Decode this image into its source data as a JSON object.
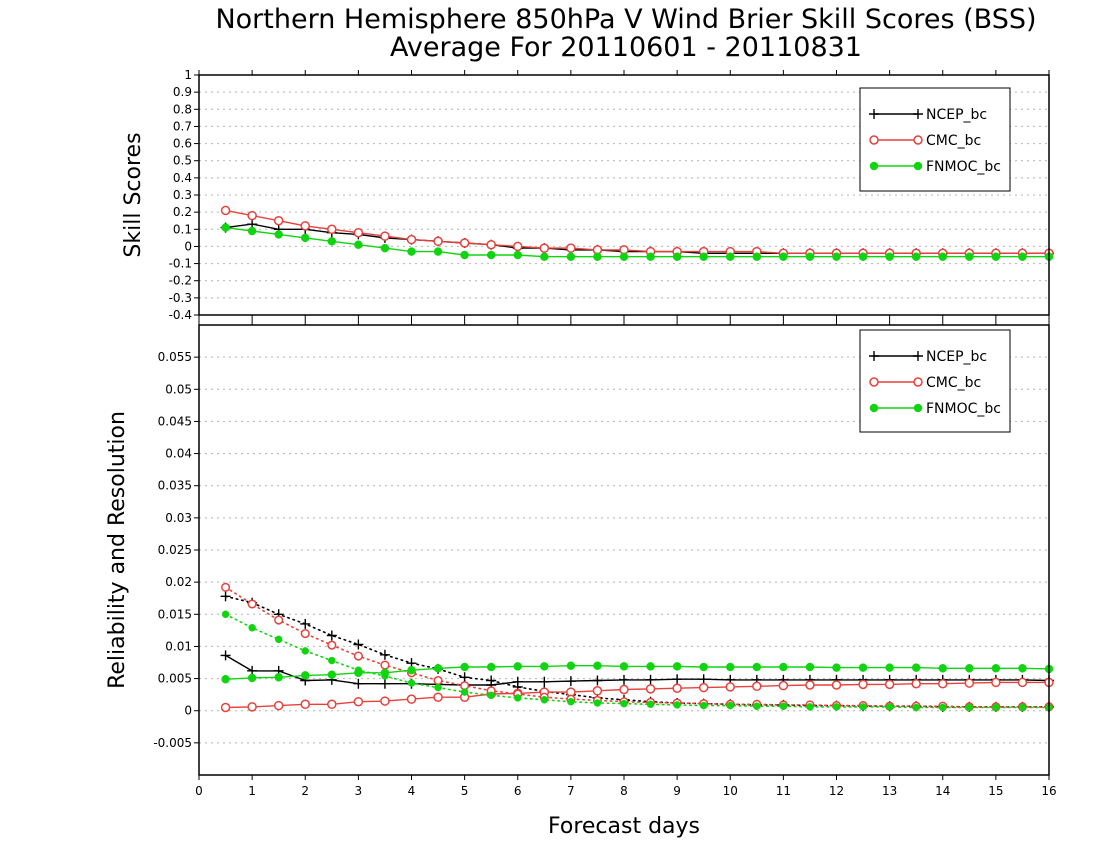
{
  "chart_data": {
    "title_line1": "Northern Hemisphere 850hPa V Wind Brier Skill Scores (BSS)",
    "title_line2": "Average For 20110601 - 20110831",
    "xlabel": "Forecast days",
    "x_ticks": [
      "0",
      "1",
      "2",
      "3",
      "4",
      "5",
      "6",
      "7",
      "8",
      "9",
      "10",
      "11",
      "12",
      "13",
      "14",
      "15",
      "16"
    ],
    "xlim": [
      0,
      16
    ],
    "x": [
      0.5,
      1,
      1.5,
      2,
      2.5,
      3,
      3.5,
      4,
      4.5,
      5,
      5.5,
      6,
      6.5,
      7,
      7.5,
      8,
      8.5,
      9,
      9.5,
      10,
      10.5,
      11,
      11.5,
      12,
      12.5,
      13,
      13.5,
      14,
      14.5,
      15,
      15.5,
      16
    ],
    "colors": {
      "NCEP_bc": "#000000",
      "CMC_bc": "#e8413c",
      "FNMOC_bc": "#11d411"
    },
    "charts": [
      {
        "type": "line",
        "ylabel": "Skill Scores",
        "ylim": [
          -0.4,
          1
        ],
        "y_ticks": [
          "1",
          "0.9",
          "0.8",
          "0.7",
          "0.6",
          "0.5",
          "0.4",
          "0.3",
          "0.2",
          "0.1",
          "0",
          "-0.1",
          "-0.2",
          "-0.3",
          "-0.4"
        ],
        "grid": true,
        "legend": "top-right",
        "series": [
          {
            "name": "NCEP_bc",
            "values": [
              0.11,
              0.13,
              0.1,
              0.1,
              0.08,
              0.07,
              0.05,
              0.04,
              0.03,
              0.02,
              0.01,
              -0.01,
              -0.01,
              -0.02,
              -0.02,
              -0.03,
              -0.03,
              -0.03,
              -0.04,
              -0.04,
              -0.04,
              -0.04,
              -0.04,
              -0.04,
              -0.04,
              -0.04,
              -0.04,
              -0.04,
              -0.04,
              -0.04,
              -0.04,
              -0.04
            ]
          },
          {
            "name": "CMC_bc",
            "values": [
              0.21,
              0.18,
              0.15,
              0.12,
              0.1,
              0.08,
              0.06,
              0.04,
              0.03,
              0.02,
              0.01,
              0.0,
              -0.01,
              -0.01,
              -0.02,
              -0.02,
              -0.03,
              -0.03,
              -0.03,
              -0.03,
              -0.03,
              -0.04,
              -0.04,
              -0.04,
              -0.04,
              -0.04,
              -0.04,
              -0.04,
              -0.04,
              -0.04,
              -0.04,
              -0.04
            ]
          },
          {
            "name": "FNMOC_bc",
            "values": [
              0.11,
              0.09,
              0.07,
              0.05,
              0.03,
              0.01,
              -0.01,
              -0.03,
              -0.03,
              -0.05,
              -0.05,
              -0.05,
              -0.06,
              -0.06,
              -0.06,
              -0.06,
              -0.06,
              -0.06,
              -0.06,
              -0.06,
              -0.06,
              -0.06,
              -0.06,
              -0.06,
              -0.06,
              -0.06,
              -0.06,
              -0.06,
              -0.06,
              -0.06,
              -0.06,
              -0.06
            ]
          }
        ]
      },
      {
        "type": "line",
        "ylabel": "Reliability and Resolution",
        "ylim": [
          -0.01,
          0.06
        ],
        "y_ticks": [
          "0.055",
          "0.05",
          "0.045",
          "0.04",
          "0.035",
          "0.03",
          "0.025",
          "0.02",
          "0.015",
          "0.01",
          "0.005",
          "0",
          "-0.005"
        ],
        "grid": true,
        "legend": "top-right",
        "series": [
          {
            "name": "NCEP_bc",
            "component": "solid",
            "values": [
              0.0086,
              0.0062,
              0.0062,
              0.0047,
              0.0048,
              0.0042,
              0.0042,
              0.0042,
              0.0041,
              0.004,
              0.004,
              0.0045,
              0.0045,
              0.0046,
              0.0047,
              0.0048,
              0.0048,
              0.0049,
              0.0049,
              0.0048,
              0.0048,
              0.0048,
              0.0048,
              0.0048,
              0.0048,
              0.0048,
              0.0048,
              0.0048,
              0.0048,
              0.0048,
              0.0048,
              0.0047
            ]
          },
          {
            "name": "NCEP_bc",
            "component": "dotted",
            "values": [
              0.0178,
              0.0168,
              0.015,
              0.0135,
              0.0117,
              0.0103,
              0.0087,
              0.0074,
              0.0065,
              0.0052,
              0.0047,
              0.0037,
              0.003,
              0.0025,
              0.002,
              0.0017,
              0.0014,
              0.0012,
              0.0011,
              0.001,
              0.0009,
              0.0009,
              0.0008,
              0.0008,
              0.0007,
              0.0007,
              0.0007,
              0.0006,
              0.0006,
              0.0006,
              0.0006,
              0.0006
            ]
          },
          {
            "name": "CMC_bc",
            "component": "solid",
            "values": [
              0.0005,
              0.0006,
              0.0008,
              0.001,
              0.001,
              0.0014,
              0.0015,
              0.0018,
              0.0021,
              0.0021,
              0.0026,
              0.0027,
              0.0029,
              0.0029,
              0.0031,
              0.0033,
              0.0034,
              0.0035,
              0.0036,
              0.0037,
              0.0038,
              0.0039,
              0.004,
              0.004,
              0.0041,
              0.0041,
              0.0042,
              0.0042,
              0.0043,
              0.0044,
              0.0044,
              0.0044
            ]
          },
          {
            "name": "CMC_bc",
            "component": "dotted",
            "values": [
              0.0192,
              0.0166,
              0.0141,
              0.012,
              0.0102,
              0.0085,
              0.0071,
              0.0059,
              0.0047,
              0.0039,
              0.0031,
              0.0026,
              0.0021,
              0.0018,
              0.0016,
              0.0014,
              0.0013,
              0.0012,
              0.0011,
              0.001,
              0.001,
              0.0009,
              0.0009,
              0.0008,
              0.0008,
              0.0007,
              0.0007,
              0.0007,
              0.0006,
              0.0006,
              0.0006,
              0.0006
            ]
          },
          {
            "name": "FNMOC_bc",
            "component": "solid",
            "values": [
              0.0049,
              0.0051,
              0.0052,
              0.0055,
              0.0056,
              0.0059,
              0.0059,
              0.0063,
              0.0066,
              0.0068,
              0.0068,
              0.0069,
              0.0069,
              0.007,
              0.007,
              0.0069,
              0.0069,
              0.0069,
              0.0068,
              0.0068,
              0.0068,
              0.0068,
              0.0068,
              0.0067,
              0.0067,
              0.0067,
              0.0067,
              0.0066,
              0.0066,
              0.0066,
              0.0066,
              0.0065
            ]
          },
          {
            "name": "FNMOC_bc",
            "component": "dotted",
            "values": [
              0.015,
              0.0129,
              0.0111,
              0.0093,
              0.0078,
              0.0063,
              0.0054,
              0.0043,
              0.0036,
              0.0029,
              0.0024,
              0.002,
              0.0017,
              0.0014,
              0.0012,
              0.0011,
              0.001,
              0.0009,
              0.0008,
              0.0008,
              0.0007,
              0.0007,
              0.0006,
              0.0006,
              0.0006,
              0.0006,
              0.0005,
              0.0005,
              0.0005,
              0.0005,
              0.0005,
              0.0005
            ]
          }
        ]
      }
    ]
  }
}
